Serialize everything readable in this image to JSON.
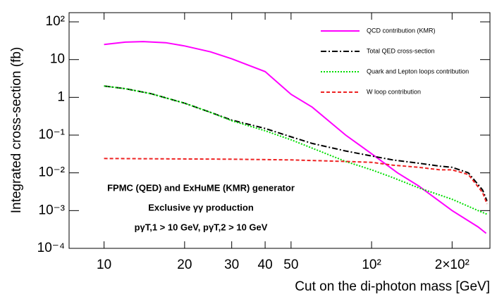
{
  "chart_data": {
    "type": "line",
    "xlabel": "Cut on the di-photon mass [GeV]",
    "ylabel": "Integrated cross-section (fb)",
    "xlog": true,
    "ylog": true,
    "xlim": [
      7.4,
      277
    ],
    "ylim": [
      0.0001,
      175
    ],
    "xticks": [
      10,
      20,
      30,
      40,
      50,
      {
        "value": 100,
        "label": "10²"
      },
      {
        "value": 200,
        "label": "2×10²"
      }
    ],
    "yticks": [
      {
        "value": 0.0001,
        "label": "10⁻⁴"
      },
      {
        "value": 0.001,
        "label": "10⁻³"
      },
      {
        "value": 0.01,
        "label": "10⁻²"
      },
      {
        "value": 0.1,
        "label": "10⁻¹"
      },
      1,
      10,
      {
        "value": 100,
        "label": "10²"
      }
    ],
    "legend": "upper right",
    "series": [
      {
        "name": "QCD contribution (KMR)",
        "color": "#ff00ff",
        "linestyle": "solid",
        "x": [
          10,
          12,
          14,
          17,
          20,
          25,
          30,
          40,
          50,
          60,
          80,
          100,
          125,
          150,
          200,
          250,
          268
        ],
        "values": [
          25,
          29,
          30,
          28,
          23,
          16,
          10.5,
          4.8,
          1.2,
          0.55,
          0.1,
          0.032,
          0.01,
          0.0045,
          0.001,
          0.00037,
          0.00025
        ]
      },
      {
        "name": "Total QED cross-section",
        "color": "#000000",
        "linestyle": "dashdot",
        "x": [
          10,
          12,
          15,
          20,
          25,
          30,
          40,
          50,
          60,
          80,
          100,
          120,
          150,
          180,
          200,
          230,
          260,
          270
        ],
        "values": [
          2,
          1.7,
          1.25,
          0.7,
          0.4,
          0.25,
          0.15,
          0.09,
          0.06,
          0.038,
          0.028,
          0.022,
          0.018,
          0.015,
          0.014,
          0.01,
          0.0035,
          0.0018
        ]
      },
      {
        "name": "Quark and Lepton loops contribution",
        "color": "#00dd00",
        "linestyle": "dotted",
        "x": [
          10,
          12,
          15,
          20,
          25,
          30,
          40,
          50,
          60,
          80,
          100,
          120,
          150,
          200,
          250,
          270
        ],
        "values": [
          2,
          1.7,
          1.25,
          0.7,
          0.4,
          0.24,
          0.13,
          0.075,
          0.045,
          0.02,
          0.012,
          0.0075,
          0.004,
          0.002,
          0.001,
          0.0008
        ]
      },
      {
        "name": "W loop contribution",
        "color": "#ee2222",
        "linestyle": "dashed",
        "x": [
          10,
          30,
          50,
          80,
          100,
          120,
          150,
          180,
          200,
          230,
          260,
          270
        ],
        "values": [
          0.024,
          0.023,
          0.022,
          0.02,
          0.019,
          0.016,
          0.014,
          0.012,
          0.012,
          0.009,
          0.003,
          0.0015
        ]
      }
    ],
    "annotations": [
      "FPMC (QED) and ExHuME (KMR) generator",
      "Exclusive γγ production",
      "pγT,1 > 10 GeV, pγT,2 > 10 GeV"
    ]
  }
}
